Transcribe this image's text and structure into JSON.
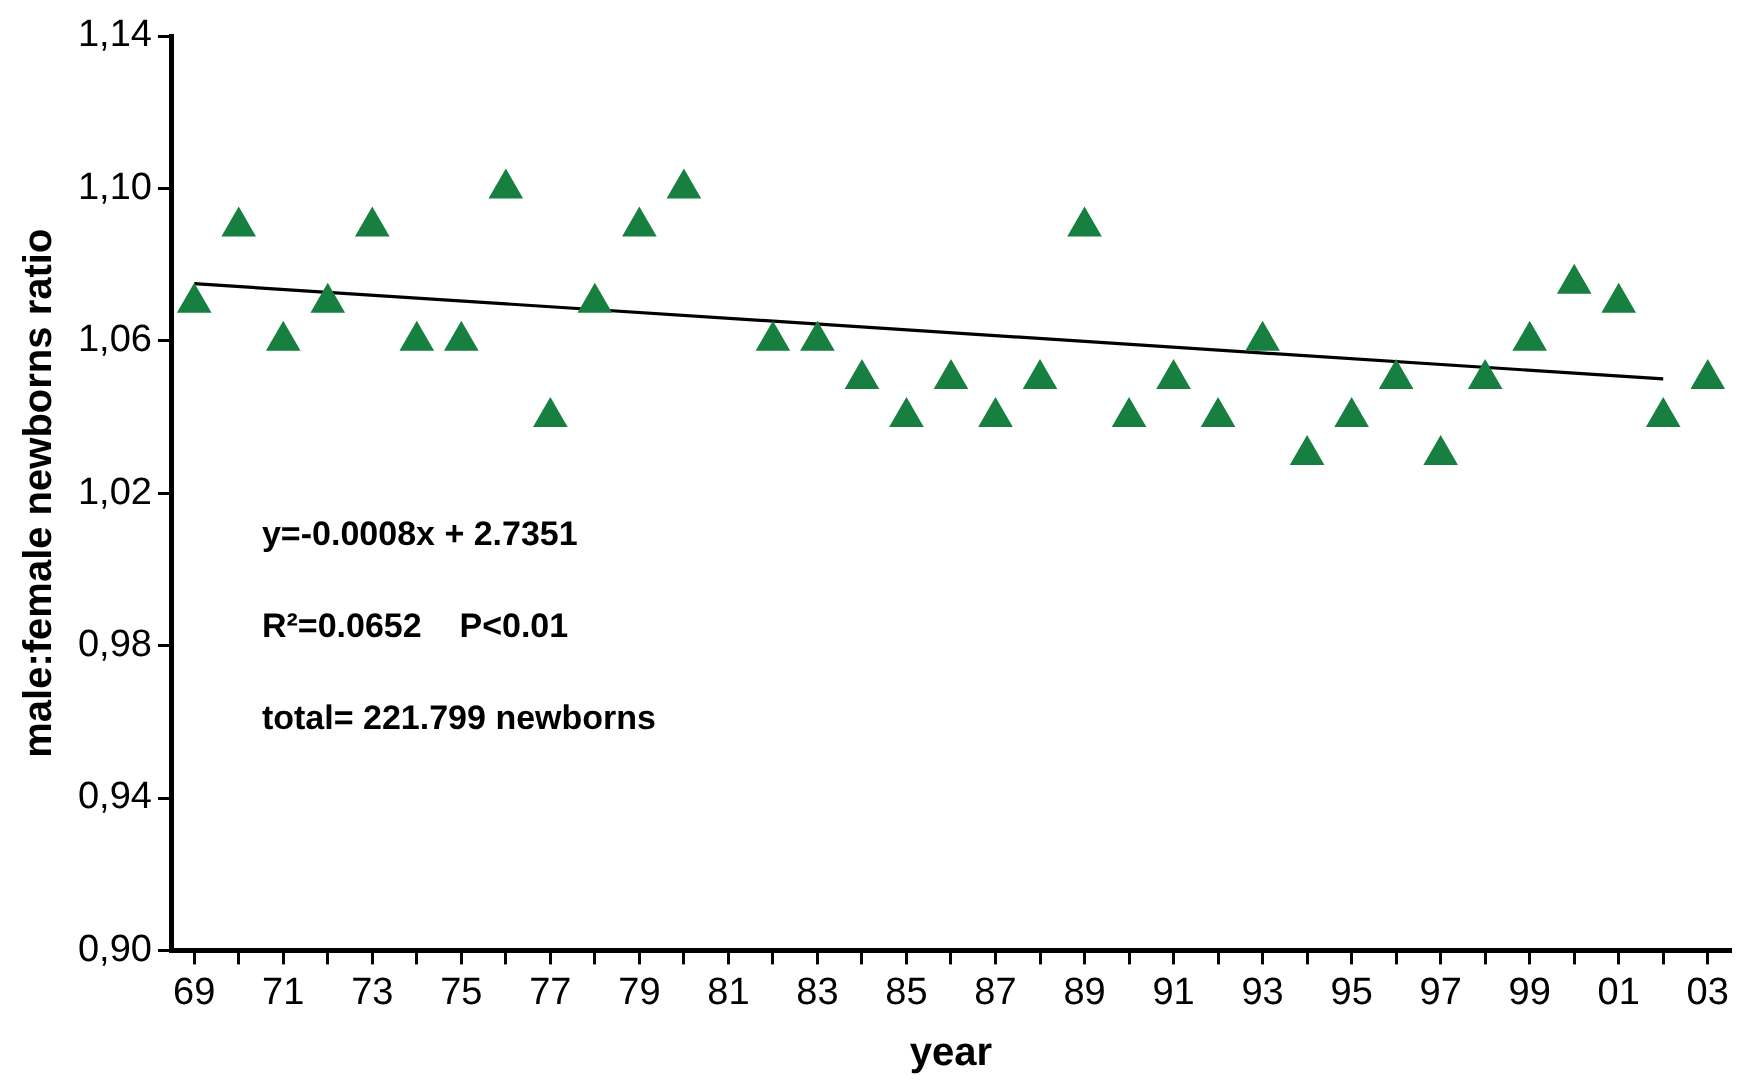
{
  "chart_data": {
    "type": "scatter",
    "xlabel": "year",
    "ylabel": "male:female newborns ratio",
    "xlim": [
      1968.5,
      2003.5
    ],
    "xticks": [
      {
        "value": 1969,
        "label": "69"
      },
      {
        "value": 1970,
        "label": null
      },
      {
        "value": 1971,
        "label": "71"
      },
      {
        "value": 1972,
        "label": null
      },
      {
        "value": 1973,
        "label": "73"
      },
      {
        "value": 1974,
        "label": null
      },
      {
        "value": 1975,
        "label": "75"
      },
      {
        "value": 1976,
        "label": null
      },
      {
        "value": 1977,
        "label": "77"
      },
      {
        "value": 1978,
        "label": null
      },
      {
        "value": 1979,
        "label": "79"
      },
      {
        "value": 1980,
        "label": null
      },
      {
        "value": 1981,
        "label": "81"
      },
      {
        "value": 1982,
        "label": null
      },
      {
        "value": 1983,
        "label": "83"
      },
      {
        "value": 1984,
        "label": null
      },
      {
        "value": 1985,
        "label": "85"
      },
      {
        "value": 1986,
        "label": null
      },
      {
        "value": 1987,
        "label": "87"
      },
      {
        "value": 1988,
        "label": null
      },
      {
        "value": 1989,
        "label": "89"
      },
      {
        "value": 1990,
        "label": null
      },
      {
        "value": 1991,
        "label": "91"
      },
      {
        "value": 1992,
        "label": null
      },
      {
        "value": 1993,
        "label": "93"
      },
      {
        "value": 1994,
        "label": null
      },
      {
        "value": 1995,
        "label": "95"
      },
      {
        "value": 1996,
        "label": null
      },
      {
        "value": 1997,
        "label": "97"
      },
      {
        "value": 1998,
        "label": null
      },
      {
        "value": 1999,
        "label": "99"
      },
      {
        "value": 2000,
        "label": null
      },
      {
        "value": 2001,
        "label": "01"
      },
      {
        "value": 2002,
        "label": null
      },
      {
        "value": 2003,
        "label": "03"
      }
    ],
    "ylim": [
      0.9,
      1.14
    ],
    "yticks": [
      {
        "value": 0.9,
        "label": "0,90"
      },
      {
        "value": 0.94,
        "label": "0,94"
      },
      {
        "value": 0.98,
        "label": "0,98"
      },
      {
        "value": 1.02,
        "label": "1,02"
      },
      {
        "value": 1.06,
        "label": "1,06"
      },
      {
        "value": 1.1,
        "label": "1,10"
      },
      {
        "value": 1.14,
        "label": "1,14"
      }
    ],
    "grid": false,
    "legend": false,
    "marker": "triangle",
    "series": [
      {
        "color": "#178040",
        "x": [
          1969,
          1970,
          1971,
          1972,
          1973,
          1974,
          1975,
          1976,
          1977,
          1978,
          1979,
          1980,
          1982,
          1983,
          1984,
          1985,
          1986,
          1987,
          1988,
          1989,
          1990,
          1991,
          1992,
          1993,
          1994,
          1995,
          1996,
          1997,
          1998,
          1999,
          2000,
          2001,
          2002,
          2003
        ],
        "values": [
          1.07,
          1.09,
          1.06,
          1.07,
          1.09,
          1.06,
          1.06,
          1.1,
          1.04,
          1.07,
          1.09,
          1.1,
          1.06,
          1.06,
          1.05,
          1.04,
          1.05,
          1.04,
          1.05,
          1.09,
          1.04,
          1.05,
          1.04,
          1.06,
          1.03,
          1.04,
          1.05,
          1.03,
          1.05,
          1.06,
          1.075,
          1.07,
          1.04,
          1.05
        ]
      },
      {
        "type": "line",
        "marker": "none",
        "color": "#000000",
        "x": [
          1969,
          2002
        ],
        "values": [
          1.075,
          1.05
        ]
      }
    ],
    "annotations": [
      "y=-0.0008x + 2.7351",
      "R²=0.0652    P<0.01",
      "total= 221.799 newborns"
    ]
  }
}
